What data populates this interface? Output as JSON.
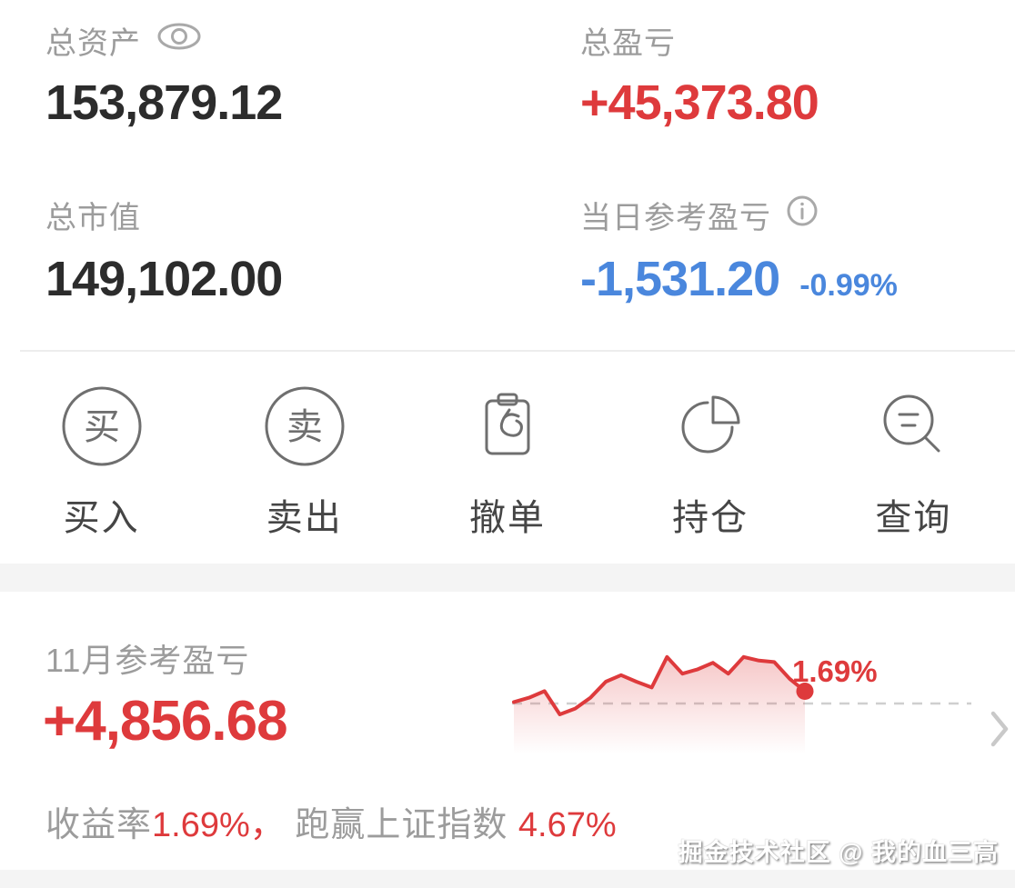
{
  "colors": {
    "profit_red": "#de3a3c",
    "loss_blue": "#4a87dd",
    "label_gray": "#9c9c9c",
    "value_dark": "#2c2c2c",
    "icon_gray": "#6f6f6f",
    "separator_band": "#f4f4f4"
  },
  "summary": {
    "total_assets": {
      "label": "总资产",
      "value": "153,879.12"
    },
    "total_pnl": {
      "label": "总盈亏",
      "value": "+45,373.80"
    },
    "total_market_value": {
      "label": "总市值",
      "value": "149,102.00"
    },
    "daily_pnl": {
      "label": "当日参考盈亏",
      "value": "-1,531.20",
      "percent": "-0.99%"
    }
  },
  "actions": [
    {
      "id": "buy",
      "label": "买入",
      "icon": "buy-circle-icon",
      "glyph": "买"
    },
    {
      "id": "sell",
      "label": "卖出",
      "icon": "sell-circle-icon",
      "glyph": "卖"
    },
    {
      "id": "cancel-order",
      "label": "撤单",
      "icon": "clipboard-undo-icon"
    },
    {
      "id": "positions",
      "label": "持仓",
      "icon": "pie-chart-icon"
    },
    {
      "id": "query",
      "label": "查询",
      "icon": "search-list-icon"
    }
  ],
  "monthly": {
    "label": "11月参考盈亏",
    "value": "+4,856.68",
    "summary_parts": [
      {
        "text": "收益率",
        "color": "gray"
      },
      {
        "text": "1.69%，",
        "color": "red"
      },
      {
        "text": " 跑赢上证指数 ",
        "color": "gray"
      },
      {
        "text": "4.67%",
        "color": "red"
      }
    ]
  },
  "chart_data": {
    "type": "line",
    "description": "11月参考盈亏 当月收益率走势 sparkline",
    "y_unit": "%",
    "baseline": 0,
    "baseline_style": "dashed",
    "grid": false,
    "values": [
      0.2,
      0.8,
      1.7,
      -1.5,
      -0.7,
      0.8,
      3.0,
      3.9,
      3.0,
      2.2,
      6.4,
      4.1,
      4.7,
      5.6,
      4.1,
      6.4,
      5.9,
      5.7,
      3.4,
      1.69
    ],
    "end_value": 1.69,
    "end_label": "1.69%",
    "line_color": "#de3a3c"
  },
  "watermark": "掘金技术社区 @ 我的血三高"
}
